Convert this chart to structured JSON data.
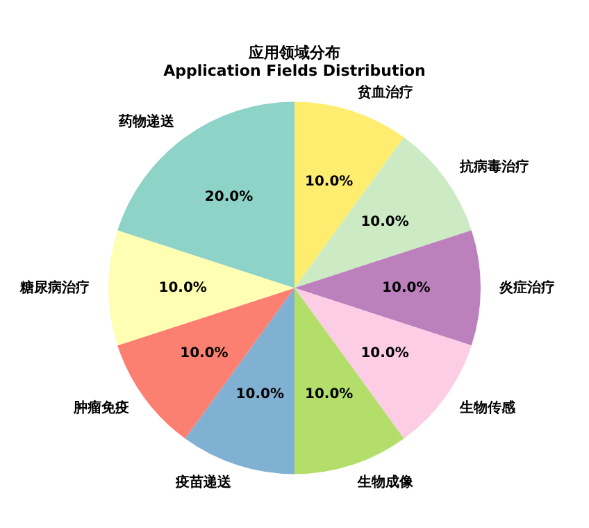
{
  "chart_data": {
    "type": "pie",
    "title": "应用领域分布",
    "subtitle": "Application Fields Distribution",
    "categories": [
      "贫血治疗",
      "抗病毒治疗",
      "炎症治疗",
      "生物传感",
      "生物成像",
      "疫苗递送",
      "肿瘤免疫",
      "糖尿病治疗",
      "药物递送"
    ],
    "values": [
      10,
      10,
      10,
      10,
      10,
      10,
      10,
      10,
      20
    ],
    "colors": [
      "#ffed6f",
      "#ccebc5",
      "#bc80bd",
      "#fccde5",
      "#b3de69",
      "#80b1d3",
      "#fb8072",
      "#ffffb3",
      "#8dd3c7"
    ],
    "value_labels": [
      "10.0%",
      "10.0%",
      "10.0%",
      "10.0%",
      "10.0%",
      "10.0%",
      "10.0%",
      "10.0%",
      "20.0%"
    ],
    "legend": false
  }
}
